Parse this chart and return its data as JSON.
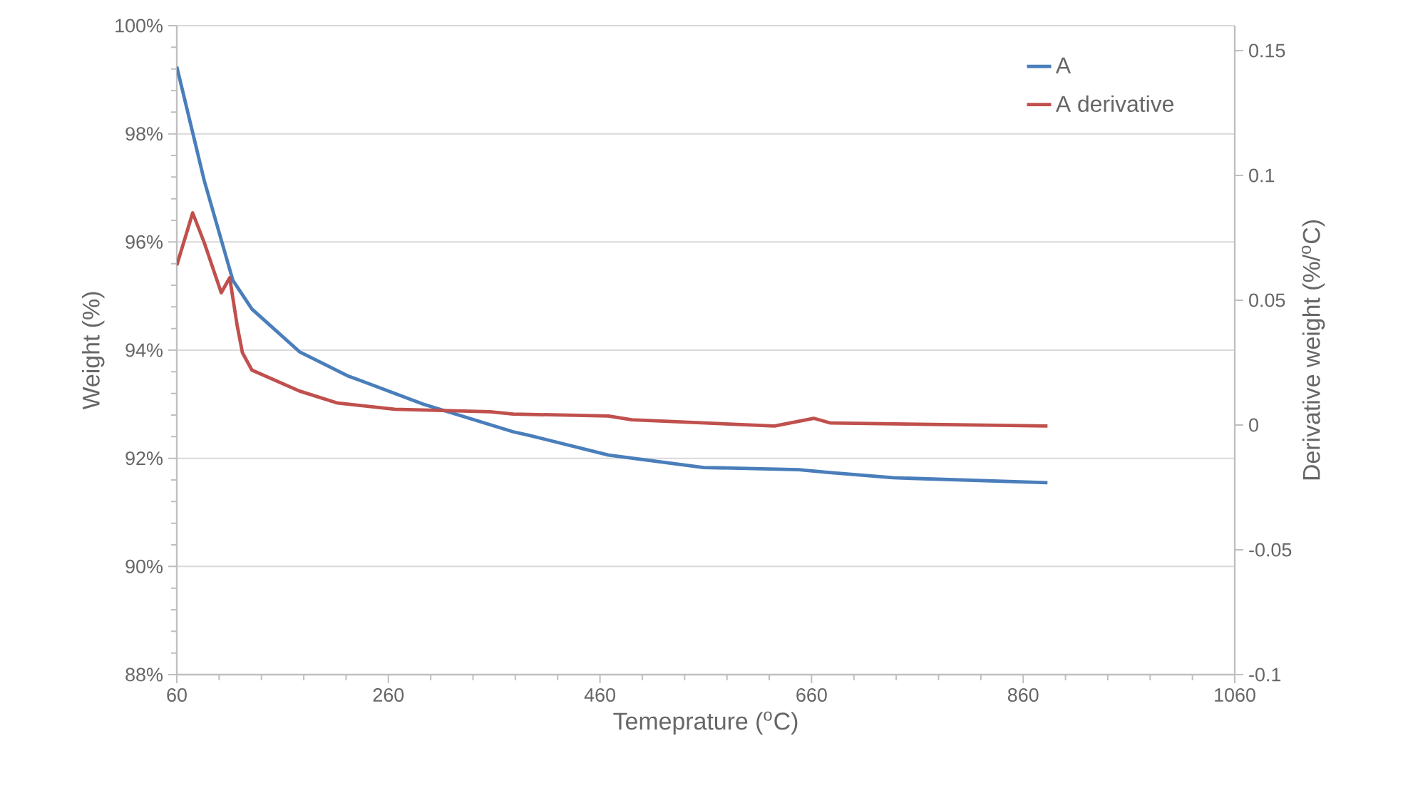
{
  "chart_data": {
    "type": "line",
    "xlabel": "Temeprature ($^{o}$C)",
    "ylabel": "Weight (%)",
    "y2label": "Derivative weight (%/$^{o}$C)",
    "xlim": [
      60,
      1060
    ],
    "xticks": [
      60,
      260,
      460,
      660,
      860,
      1060
    ],
    "ylim": [
      88,
      100
    ],
    "yticks": [
      {
        "value": 88,
        "label": "88%"
      },
      {
        "value": 90,
        "label": "90%"
      },
      {
        "value": 92,
        "label": "92%"
      },
      {
        "value": 94,
        "label": "94%"
      },
      {
        "value": 96,
        "label": "96%"
      },
      {
        "value": 98,
        "label": "98%"
      },
      {
        "value": 100,
        "label": "100%"
      }
    ],
    "y2lim": [
      -0.1,
      0.16
    ],
    "y2ticks": [
      -0.1,
      -0.05,
      0,
      0.05,
      0.1,
      0.15
    ],
    "grid": "y",
    "legend": "top right",
    "marker": "none",
    "line_style": "solid",
    "series": [
      {
        "name": "A",
        "color": "#4a7ebb",
        "axis": "y",
        "x": [
          60,
          86,
          113,
          131,
          176,
          221,
          293,
          378,
          392,
          468,
          558,
          648,
          675,
          737,
          883
        ],
        "values": [
          99.24,
          97.13,
          95.29,
          94.76,
          93.97,
          93.53,
          93.0,
          92.49,
          92.43,
          92.06,
          91.83,
          91.79,
          91.74,
          91.64,
          91.55
        ]
      },
      {
        "name": "A derivative",
        "color": "#c0504d",
        "axis": "y2",
        "x": [
          60,
          75,
          86,
          102,
          110,
          117,
          122,
          131,
          176,
          212,
          266,
          356,
          378,
          468,
          490,
          625,
          662,
          678,
          883
        ],
        "values": [
          0.064,
          0.085,
          0.073,
          0.053,
          0.059,
          0.04,
          0.029,
          0.022,
          0.0136,
          0.0088,
          0.0063,
          0.0053,
          0.0044,
          0.0036,
          0.0021,
          -0.0004,
          0.0027,
          0.0008,
          -0.0004
        ]
      }
    ]
  }
}
